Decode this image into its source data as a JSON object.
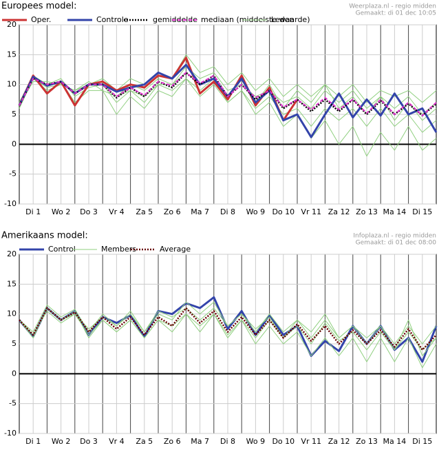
{
  "chart_data": [
    {
      "type": "line",
      "title": "Europees model:",
      "source": [
        "Weerplaza.nl - regio midden",
        "Gemaakt: di 01 dec 10:05"
      ],
      "categories": [
        "Di 1",
        "Wo 2",
        "Do 3",
        "Vr 4",
        "Za 5",
        "Zo 6",
        "Ma 7",
        "Di 8",
        "Wo 9",
        "Do 10",
        "Vr 11",
        "Za 12",
        "Zo 13",
        "Ma 14",
        "Di 15"
      ],
      "x": [
        0,
        0.5,
        1,
        1.5,
        2,
        2.5,
        3,
        3.5,
        4,
        4.5,
        5,
        5.5,
        6,
        6.5,
        7,
        7.5,
        8,
        8.5,
        9,
        9.5,
        10,
        10.5,
        11,
        11.5,
        12,
        12.5,
        13,
        13.5,
        14,
        14.5,
        15
      ],
      "xlim": [
        0,
        15
      ],
      "ylim": [
        -10,
        20
      ],
      "yticks": [
        -10,
        -5,
        0,
        5,
        10,
        15,
        20
      ],
      "grid": true,
      "series": [
        {
          "name": "Leden",
          "color": "#8fcf7f",
          "values": [
            6,
            11,
            9.5,
            10,
            9,
            10.5,
            9,
            8,
            10,
            9,
            11,
            10,
            13,
            11,
            12,
            9,
            10,
            8,
            9,
            7,
            8,
            6,
            9,
            7,
            9,
            6,
            8,
            6,
            8,
            5,
            7
          ]
        },
        {
          "name": "Leden",
          "color": "#8fcf7f",
          "values": [
            7,
            11.5,
            10,
            11,
            8,
            9.5,
            10,
            7,
            9,
            7,
            10,
            9,
            11,
            9,
            11,
            7,
            9,
            6,
            8,
            5,
            6,
            3,
            6,
            4,
            6,
            3,
            6,
            3,
            5,
            2,
            4
          ]
        },
        {
          "name": "Leden",
          "color": "#8fcf7f",
          "values": [
            6.5,
            10.5,
            10.5,
            10,
            9,
            10,
            11,
            9,
            11,
            10,
            12,
            11,
            15,
            12,
            13,
            10,
            12,
            9,
            11,
            8,
            10,
            8,
            10,
            8,
            10,
            7,
            9,
            8,
            9,
            7,
            9
          ]
        },
        {
          "name": "Leden",
          "color": "#8fcf7f",
          "values": [
            6,
            11,
            10,
            10.5,
            7,
            9,
            9,
            5,
            8,
            6,
            9,
            8,
            11,
            8,
            10,
            7,
            9,
            5,
            7,
            3,
            5,
            1,
            4,
            0,
            3,
            -2,
            2,
            -1,
            3,
            -1,
            1
          ]
        },
        {
          "name": "Leden",
          "color": "#8fcf7f",
          "values": [
            7,
            11,
            9,
            10,
            9,
            10,
            10,
            8,
            9,
            8,
            10,
            10,
            12,
            10,
            11,
            8,
            11,
            7,
            10,
            6,
            9,
            7,
            10,
            6,
            8,
            5,
            8,
            4,
            7,
            4,
            6
          ]
        },
        {
          "name": "Oper.",
          "color": "#cc3333",
          "width": 3,
          "values": [
            6.5,
            11.5,
            8.5,
            10.5,
            6.5,
            10,
            10.5,
            9,
            10,
            9.5,
            11.5,
            11,
            14.5,
            8.5,
            10.5,
            7.5,
            11.5,
            6.5,
            9.5,
            4,
            7.5,
            null,
            null,
            null,
            null,
            null,
            null,
            null,
            null,
            null,
            null
          ]
        },
        {
          "name": "Controle",
          "color": "#3344aa",
          "width": 3,
          "values": [
            6.5,
            11.3,
            9.8,
            10.5,
            8.5,
            10,
            10,
            8.8,
            9.5,
            10,
            12,
            11,
            13.3,
            10,
            11,
            8,
            11,
            7,
            9,
            4,
            5,
            1.2,
            5,
            8.5,
            4.5,
            7.5,
            4.8,
            8.5,
            5,
            6,
            2
          ]
        },
        {
          "name": "gemiddelde",
          "color": "#000000",
          "width": 2.5,
          "dash": "2,2",
          "values": [
            6.5,
            11,
            10,
            10.5,
            8.5,
            10,
            10,
            7.8,
            9.5,
            8,
            10.5,
            9.5,
            12,
            10,
            11.5,
            8,
            10,
            7.5,
            9,
            6,
            7.5,
            5.5,
            7.5,
            5.5,
            7.5,
            5,
            7.3,
            5,
            6.8,
            4.8,
            6.8
          ]
        },
        {
          "name": "mediaan (middelste waarde)",
          "color": "#dd33cc",
          "width": 2,
          "dash": "5,3",
          "values": [
            6.5,
            11,
            10,
            10.5,
            8.5,
            10,
            10,
            8,
            9.5,
            8.2,
            10.5,
            9.8,
            12,
            10.2,
            11.5,
            8,
            10,
            7.8,
            9,
            6.2,
            7.5,
            5.8,
            7.8,
            5.8,
            7.5,
            5.2,
            7.5,
            5,
            7,
            4.8,
            7
          ]
        }
      ]
    },
    {
      "type": "line",
      "title": "Amerikaans model:",
      "source": [
        "Infoplaza.nl - regio midden",
        "Gemaakt: di 01 dec 08:00"
      ],
      "categories": [
        "Di 1",
        "Wo 2",
        "Do 3",
        "Vr 4",
        "Za 5",
        "Zo 6",
        "Ma 7",
        "Di 8",
        "Wo 9",
        "Do 10",
        "Vr 11",
        "Za 12",
        "Zo 13",
        "Ma 14",
        "Di 15"
      ],
      "x": [
        0,
        0.5,
        1,
        1.5,
        2,
        2.5,
        3,
        3.5,
        4,
        4.5,
        5,
        5.5,
        6,
        6.5,
        7,
        7.5,
        8,
        8.5,
        9,
        9.5,
        10,
        10.5,
        11,
        11.5,
        12,
        12.5,
        13,
        13.5,
        14,
        14.5,
        15
      ],
      "xlim": [
        0,
        15
      ],
      "ylim": [
        -10,
        20
      ],
      "yticks": [
        -10,
        -5,
        0,
        5,
        10,
        15,
        20
      ],
      "grid": true,
      "series": [
        {
          "name": "Control",
          "color": "#3344aa",
          "width": 3,
          "values": [
            9,
            6.2,
            11,
            9,
            10.5,
            6.5,
            9.5,
            8.5,
            9.8,
            6.2,
            10.5,
            10,
            11.8,
            11,
            12.8,
            7.5,
            10.5,
            6.5,
            9.8,
            6.5,
            8,
            3,
            5.5,
            3.8,
            8,
            5,
            8,
            4,
            6,
            2,
            8
          ]
        },
        {
          "name": "Members",
          "color": "#8fcf7f",
          "values": [
            9,
            6,
            11,
            9,
            10.5,
            6,
            9,
            7,
            9,
            6,
            9,
            7,
            10,
            7,
            10,
            6,
            9,
            5,
            8,
            5,
            7,
            3,
            6,
            3,
            6,
            2,
            6,
            2,
            6,
            1,
            5
          ]
        },
        {
          "name": "Members",
          "color": "#8fcf7f",
          "values": [
            9,
            7,
            11.5,
            9.5,
            10.8,
            7,
            10,
            8,
            10,
            7,
            10,
            9,
            12,
            10,
            12,
            8,
            10,
            7,
            10,
            7,
            9,
            6,
            9,
            6,
            8,
            6,
            8,
            5,
            8,
            5,
            8
          ]
        },
        {
          "name": "Members",
          "color": "#8fcf7f",
          "values": [
            9,
            6.5,
            10.5,
            8.5,
            10,
            7.5,
            9.5,
            8,
            10.5,
            7,
            10.5,
            9.5,
            11,
            9,
            11,
            8,
            10,
            7.5,
            9.5,
            6,
            8,
            5,
            8.5,
            5.5,
            7,
            4,
            7,
            4,
            7,
            4,
            6
          ]
        },
        {
          "name": "Members",
          "color": "#8fcf7f",
          "values": [
            9,
            6,
            11,
            9,
            10,
            6.5,
            9,
            7,
            9,
            6,
            9,
            8,
            10,
            8,
            10,
            6.5,
            9,
            6,
            9,
            6,
            9,
            7,
            10,
            6,
            8,
            5,
            8,
            4,
            9,
            3,
            6
          ]
        },
        {
          "name": "Average",
          "color": "#660000",
          "width": 2.5,
          "dash": "2,2",
          "values": [
            9,
            6.5,
            11,
            9,
            10.3,
            7,
            9.5,
            7.5,
            9.5,
            6.5,
            9.5,
            8,
            11,
            8.5,
            10.5,
            7,
            9.5,
            6.5,
            9,
            6,
            8.3,
            5.5,
            8,
            5,
            7.3,
            5,
            7.3,
            4.5,
            7.5,
            4,
            6.5
          ]
        }
      ]
    }
  ]
}
